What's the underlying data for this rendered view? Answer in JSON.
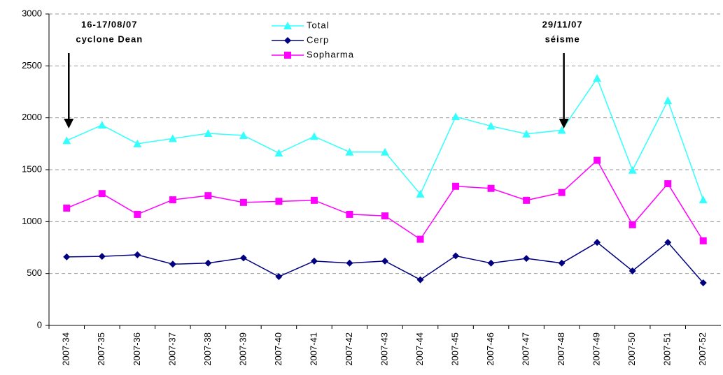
{
  "chart_data": {
    "type": "line",
    "categories": [
      "2007-34",
      "2007-35",
      "2007-36",
      "2007-37",
      "2007-38",
      "2007-39",
      "2007-40",
      "2007-41",
      "2007-42",
      "2007-43",
      "2007-44",
      "2007-45",
      "2007-46",
      "2007-47",
      "2007-48",
      "2007-49",
      "2007-50",
      "2007-51",
      "2007-52"
    ],
    "series": [
      {
        "name": "Total",
        "color": "#33ffff",
        "marker": "triangle",
        "values": [
          1780,
          1930,
          1750,
          1800,
          1850,
          1830,
          1660,
          1820,
          1670,
          1670,
          1265,
          2010,
          1920,
          1845,
          1880,
          2380,
          1495,
          2165,
          1210
        ]
      },
      {
        "name": "Cerp",
        "color": "#000080",
        "marker": "diamond",
        "values": [
          660,
          665,
          680,
          590,
          600,
          650,
          470,
          620,
          600,
          620,
          440,
          670,
          600,
          645,
          600,
          800,
          525,
          800,
          410
        ]
      },
      {
        "name": "Sopharma",
        "color": "#ff00ff",
        "marker": "square",
        "values": [
          1130,
          1270,
          1070,
          1210,
          1250,
          1185,
          1195,
          1205,
          1070,
          1055,
          830,
          1340,
          1320,
          1205,
          1280,
          1590,
          970,
          1365,
          815
        ]
      }
    ],
    "ylim": [
      0,
      3000
    ],
    "yticks": [
      0,
      500,
      1000,
      1500,
      2000,
      2500,
      3000
    ],
    "grid": true,
    "legend": "top",
    "annotations": [
      {
        "lines": [
          "16-17/08/07",
          "cyclone Dean"
        ],
        "category": "2007-34"
      },
      {
        "lines": [
          "29/11/07",
          "séisme"
        ],
        "category": "2007-48"
      }
    ]
  }
}
